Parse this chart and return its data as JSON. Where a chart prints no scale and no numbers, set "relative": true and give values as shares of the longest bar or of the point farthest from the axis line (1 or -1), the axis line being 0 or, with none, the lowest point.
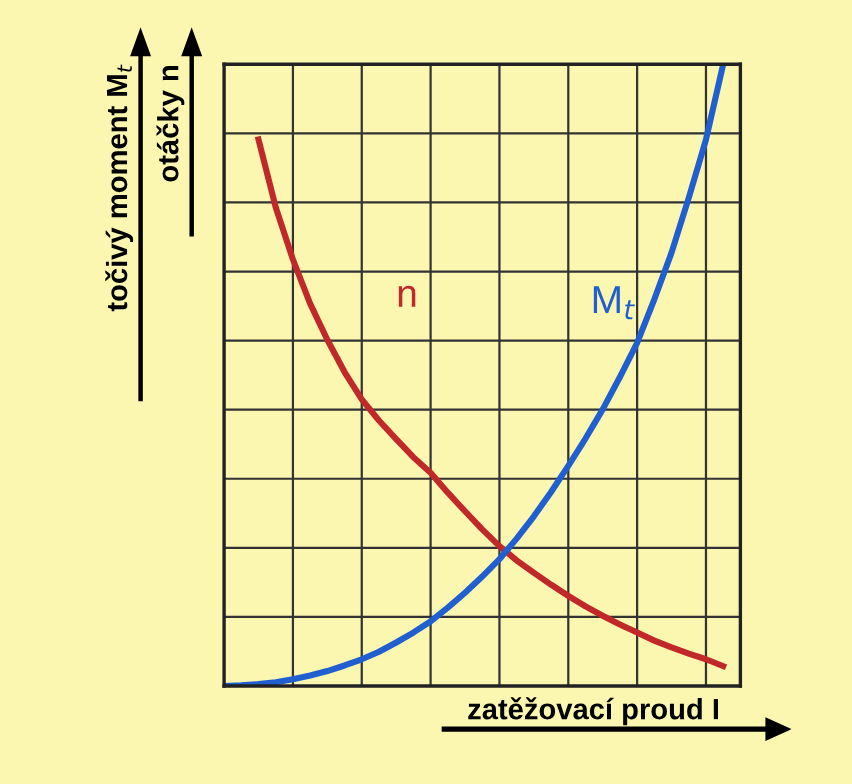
{
  "chart_data": {
    "type": "line",
    "relative": true,
    "xlabel": "zatěžovací proud I",
    "ylabel": "točivý moment M$_{t}$",
    "annotations": [
      "otáčky n"
    ],
    "categories": [
      null,
      null,
      null,
      null,
      null,
      null,
      null,
      null,
      null,
      null,
      null,
      null,
      null,
      null,
      null,
      null,
      null,
      null,
      null,
      null,
      null,
      null,
      null,
      null,
      null,
      null,
      null,
      null,
      null,
      null,
      null
    ],
    "series": [
      {
        "name": "n",
        "color": "#c0282a",
        "values": [
          null,
          null,
          0.879,
          0.77,
          0.686,
          0.615,
          0.557,
          0.505,
          0.461,
          0.427,
          0.397,
          0.368,
          0.343,
          0.311,
          0.281,
          0.252,
          0.225,
          0.202,
          0.182,
          0.163,
          0.145,
          0.128,
          0.113,
          0.099,
          0.086,
          0.073,
          0.062,
          0.052,
          0.043,
          0.032,
          null
        ]
      },
      {
        "name": "M$_{t}$",
        "color": "#1f5fd0",
        "values": [
          0,
          0.001,
          0.003,
          0.006,
          0.011,
          0.017,
          0.024,
          0.033,
          0.043,
          0.055,
          0.07,
          0.086,
          0.104,
          0.126,
          0.15,
          0.176,
          0.204,
          0.237,
          0.273,
          0.312,
          0.354,
          0.398,
          0.445,
          0.497,
          0.552,
          0.622,
          0.697,
          0.785,
          0.879,
          1.0,
          null
        ]
      }
    ],
    "grid": true,
    "legend": false,
    "tick_labels": false,
    "marker": "none",
    "line_style": "solid"
  }
}
